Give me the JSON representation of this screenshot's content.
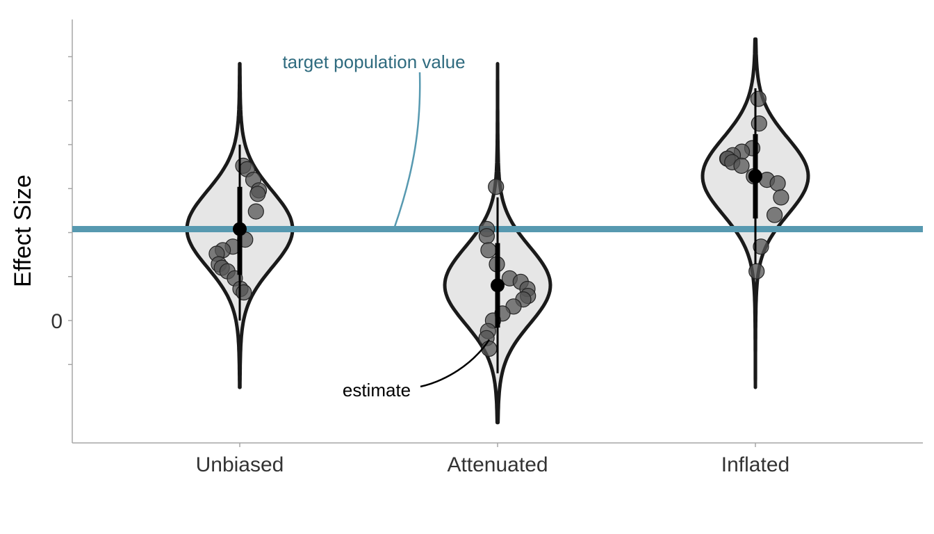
{
  "chart_data": {
    "type": "violin",
    "ylabel": "Effect Size",
    "xlabel": "",
    "title": "",
    "categories": [
      "Unbiased",
      "Attenuated",
      "Inflated"
    ],
    "y_tick_labels": [
      {
        "value": 0,
        "label": "0"
      }
    ],
    "ylim": [
      -0.27,
      0.93
    ],
    "reference_line": {
      "label": "target population value",
      "value": 0.26,
      "color": "#5799b0"
    },
    "estimate_label": "estimate",
    "colors": {
      "violin_fill": "#e6e6e6",
      "violin_stroke": "#1a1a1a",
      "points": "#555555",
      "reference": "#5799b0",
      "annotation_text": "#2f6b7f"
    },
    "groups": [
      {
        "name": "Unbiased",
        "estimate": 0.26,
        "interval_thin": [
          0.0,
          0.5
        ],
        "interval_thick": [
          0.13,
          0.38
        ],
        "violin_range": [
          -0.19,
          0.73
        ],
        "violin_mode": 0.26,
        "violin_sd": 0.108,
        "violin_tail_sd": 0.2,
        "points": [
          0.44,
          0.43,
          0.4,
          0.37,
          0.36,
          0.31,
          0.23,
          0.21,
          0.2,
          0.19,
          0.16,
          0.15,
          0.14,
          0.12,
          0.09,
          0.08
        ]
      },
      {
        "name": "Attenuated",
        "estimate": 0.1,
        "interval_thin": [
          -0.15,
          0.35
        ],
        "interval_thick": [
          -0.02,
          0.22
        ],
        "violin_range": [
          -0.29,
          0.73
        ],
        "violin_mode": 0.1,
        "violin_sd": 0.108,
        "violin_tail_sd": 0.2,
        "points": [
          0.38,
          0.26,
          0.24,
          0.2,
          0.16,
          0.12,
          0.11,
          0.09,
          0.07,
          0.06,
          0.04,
          0.02,
          0.0,
          -0.03,
          -0.05,
          -0.08
        ]
      },
      {
        "name": "Inflated",
        "estimate": 0.41,
        "interval_thin": [
          0.16,
          0.66
        ],
        "interval_thick": [
          0.29,
          0.53
        ],
        "violin_range": [
          -0.19,
          0.8
        ],
        "violin_mode": 0.41,
        "violin_sd": 0.108,
        "violin_tail_sd": 0.2,
        "points": [
          0.63,
          0.56,
          0.49,
          0.48,
          0.47,
          0.46,
          0.46,
          0.45,
          0.44,
          0.41,
          0.4,
          0.39,
          0.35,
          0.3,
          0.21,
          0.14
        ]
      }
    ]
  }
}
